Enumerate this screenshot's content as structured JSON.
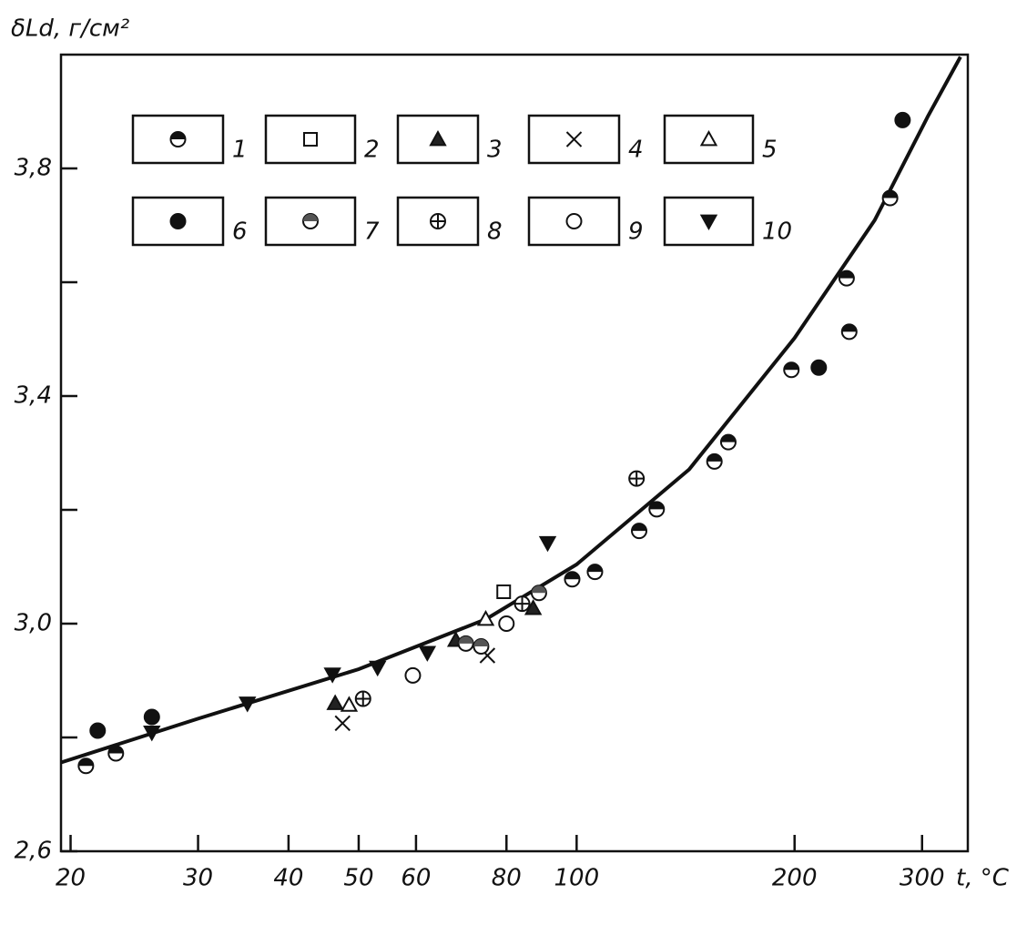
{
  "chart_data": {
    "type": "scatter",
    "y_label": "δLd, г/см²",
    "x_label": "t, °C",
    "xscale": "log",
    "xlim": [
      19.4,
      347
    ],
    "ylim": [
      2.6,
      4.0
    ],
    "xticks": [
      20,
      30,
      40,
      50,
      60,
      80,
      100,
      200,
      300
    ],
    "yticks": [
      {
        "value": 2.6,
        "label": "2,6"
      },
      {
        "value": 3.0,
        "label": "3,0"
      },
      {
        "value": 3.4,
        "label": "3,4"
      },
      {
        "value": 3.8,
        "label": "3,8"
      }
    ],
    "yminorticks": [
      2.8,
      3.2,
      3.6
    ],
    "series": [
      {
        "name": "1",
        "marker": "halfcircle",
        "x": [
          21.0,
          23.1,
          155,
          162,
          198,
          236,
          271,
          238,
          122,
          129,
          98.6,
          106
        ],
        "values": [
          2.75,
          2.772,
          3.285,
          3.319,
          3.446,
          3.607,
          3.748,
          3.513,
          3.163,
          3.201,
          3.078,
          3.091
        ]
      },
      {
        "name": "2",
        "marker": "square",
        "x": [
          79.3
        ],
        "values": [
          3.056
        ]
      },
      {
        "name": "3",
        "marker": "triangle",
        "x": [
          46.4,
          68.1,
          87.1
        ],
        "values": [
          2.86,
          2.971,
          3.027
        ]
      },
      {
        "name": "4",
        "marker": "cross",
        "x": [
          47.5,
          75.3
        ],
        "values": [
          2.825,
          2.944
        ]
      },
      {
        "name": "5",
        "marker": "opentriangle",
        "x": [
          48.5,
          74.9
        ],
        "values": [
          2.857,
          3.008
        ]
      },
      {
        "name": "6",
        "marker": "dot",
        "x": [
          21.8,
          25.9,
          216,
          282
        ],
        "values": [
          2.812,
          2.836,
          3.45,
          3.885
        ]
      },
      {
        "name": "7",
        "marker": "halfcircle2",
        "x": [
          88.7,
          70.3,
          73.8
        ],
        "values": [
          3.054,
          2.965,
          2.96
        ]
      },
      {
        "name": "8",
        "marker": "pluscircle",
        "x": [
          121,
          84.1,
          50.7
        ],
        "values": [
          3.255,
          3.035,
          2.868
        ]
      },
      {
        "name": "9",
        "marker": "circle",
        "x": [
          59.4,
          80.0
        ],
        "values": [
          2.909,
          3.0
        ]
      },
      {
        "name": "10",
        "marker": "downtriangle",
        "x": [
          25.9,
          35.1,
          46.0,
          53.1,
          62.2,
          91.2
        ],
        "values": [
          2.809,
          2.86,
          2.911,
          2.923,
          2.949,
          3.142
        ]
      }
    ],
    "fit": {
      "x": [
        19.4,
        30,
        50,
        75,
        100,
        143,
        200,
        258,
        306,
        339
      ],
      "values": [
        2.756,
        2.833,
        2.92,
        3.008,
        3.104,
        3.271,
        3.502,
        3.709,
        3.893,
        3.996
      ]
    }
  }
}
